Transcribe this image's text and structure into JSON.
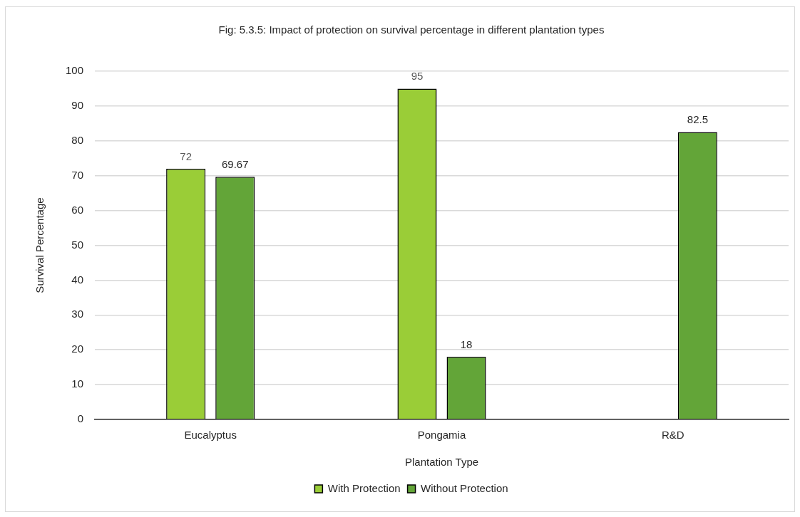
{
  "chart_data": {
    "type": "bar",
    "title": "Fig: 5.3.5: Impact of protection on survival percentage in different plantation types",
    "xlabel": "Plantation Type",
    "ylabel": "Survival Percentage",
    "categories": [
      "Eucalyptus",
      "Pongamia",
      "R&D"
    ],
    "series": [
      {
        "name": "With Protection",
        "color": "#9acd37",
        "values": [
          72,
          95,
          null
        ]
      },
      {
        "name": "Without Protection",
        "color": "#63a538",
        "values": [
          69.67,
          18,
          82.5
        ]
      }
    ],
    "ylim": [
      0,
      100
    ],
    "yticks": [
      0,
      10,
      20,
      30,
      40,
      50,
      60,
      70,
      80,
      90,
      100
    ],
    "grid": "y",
    "legend": "bottom",
    "data_labels": true
  }
}
